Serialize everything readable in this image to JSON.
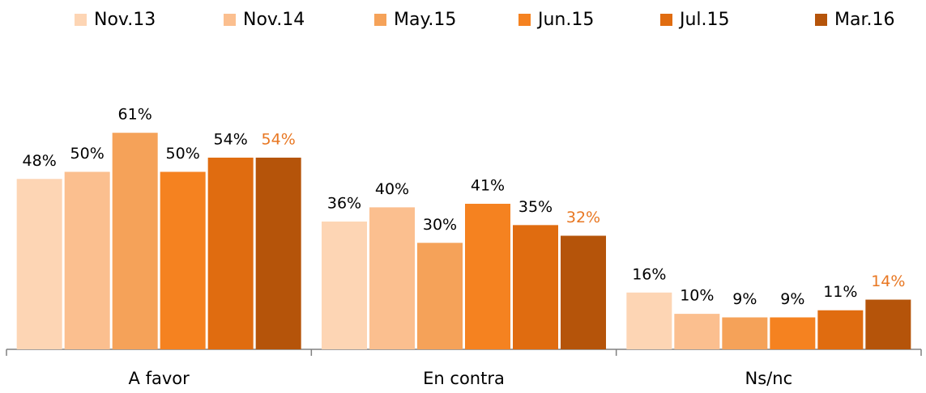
{
  "chart_data": {
    "type": "bar",
    "categories": [
      "A favor",
      "En contra",
      "Ns/nc"
    ],
    "series": [
      {
        "name": "Nov.13",
        "color": "#fdd5b4",
        "values": [
          48,
          36,
          16
        ],
        "value_labels": [
          "48%",
          "36%",
          "16%"
        ]
      },
      {
        "name": "Nov.14",
        "color": "#fbbf8f",
        "values": [
          50,
          40,
          10
        ],
        "value_labels": [
          "50%",
          "40%",
          "10%"
        ]
      },
      {
        "name": "May.15",
        "color": "#f5a259",
        "values": [
          61,
          30,
          9
        ],
        "value_labels": [
          "61%",
          "30%",
          "9%"
        ]
      },
      {
        "name": "Jun.15",
        "color": "#f58220",
        "values": [
          50,
          41,
          9
        ],
        "value_labels": [
          "50%",
          "41%",
          "9%"
        ]
      },
      {
        "name": "Jul.15",
        "color": "#e06c10",
        "values": [
          54,
          35,
          11
        ],
        "value_labels": [
          "54%",
          "35%",
          "11%"
        ]
      },
      {
        "name": "Mar.16",
        "color": "#b5540a",
        "values": [
          54,
          32,
          14
        ],
        "value_labels": [
          "54%",
          "32%",
          "14%"
        ],
        "label_color": "#e87722"
      }
    ],
    "legend": "top"
  }
}
